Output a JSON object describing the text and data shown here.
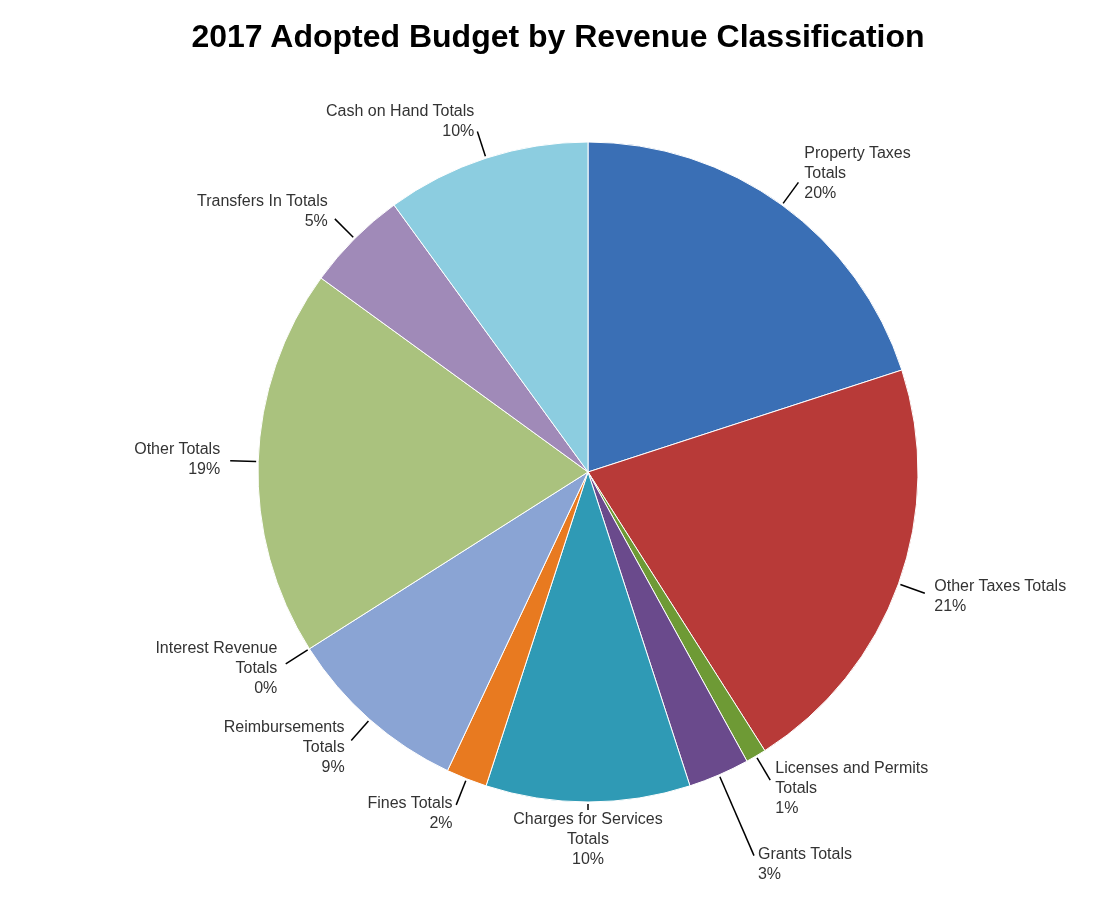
{
  "chart_data": {
    "type": "pie",
    "title": "2017 Adopted Budget by Revenue Classification",
    "categories": [
      "Property Taxes Totals",
      "Other Taxes Totals",
      "Licenses and Permits Totals",
      "Grants Totals",
      "Charges for Services Totals",
      "Fines Totals",
      "Reimbursements Totals",
      "Interest Revenue Totals",
      "Other Totals",
      "Transfers In Totals",
      "Cash on Hand Totals"
    ],
    "values": [
      20,
      21,
      1,
      3,
      10,
      2,
      9,
      0,
      19,
      5,
      10
    ],
    "value_labels": [
      "20%",
      "21%",
      "1%",
      "3%",
      "10%",
      "2%",
      "9%",
      "0%",
      "19%",
      "5%",
      "10%"
    ],
    "colors": [
      "#3a6fb5",
      "#b83a38",
      "#6e9a35",
      "#6a4a8c",
      "#2f9ab5",
      "#e87a20",
      "#8aa4d4",
      "#d47a78",
      "#aac27e",
      "#a08ab8",
      "#8ccde0"
    ]
  }
}
